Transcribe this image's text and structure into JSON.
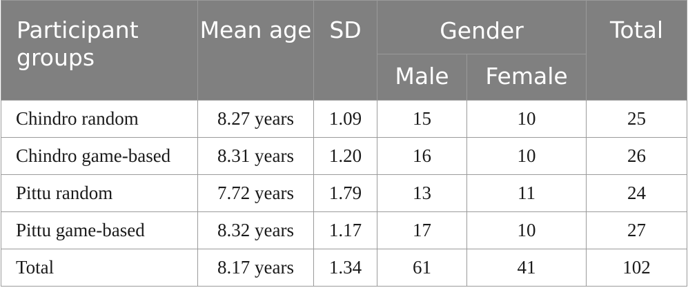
{
  "table": {
    "headers": {
      "participant_groups": "Participant groups",
      "mean_age": "Mean age",
      "sd": "SD",
      "gender": "Gender",
      "male": "Male",
      "female": "Female",
      "total": "Total"
    },
    "rows": [
      {
        "group": "Chindro random",
        "mean_age": "8.27 years",
        "sd": "1.09",
        "male": "15",
        "female": "10",
        "total": "25"
      },
      {
        "group": "Chindro game-based",
        "mean_age": "8.31 years",
        "sd": "1.20",
        "male": "16",
        "female": "10",
        "total": "26"
      },
      {
        "group": "Pittu random",
        "mean_age": "7.72 years",
        "sd": "1.79",
        "male": "13",
        "female": "11",
        "total": "24"
      },
      {
        "group": "Pittu game-based",
        "mean_age": "8.32 years",
        "sd": "1.17",
        "male": "17",
        "female": "10",
        "total": "27"
      },
      {
        "group": "Total",
        "mean_age": "8.17 years",
        "sd": "1.34",
        "male": "61",
        "female": "41",
        "total": "102"
      }
    ],
    "colors": {
      "header_background": "#808080",
      "header_text": "#ffffff",
      "border": "#9a9a9a",
      "body_text": "#1a1a1a"
    }
  }
}
